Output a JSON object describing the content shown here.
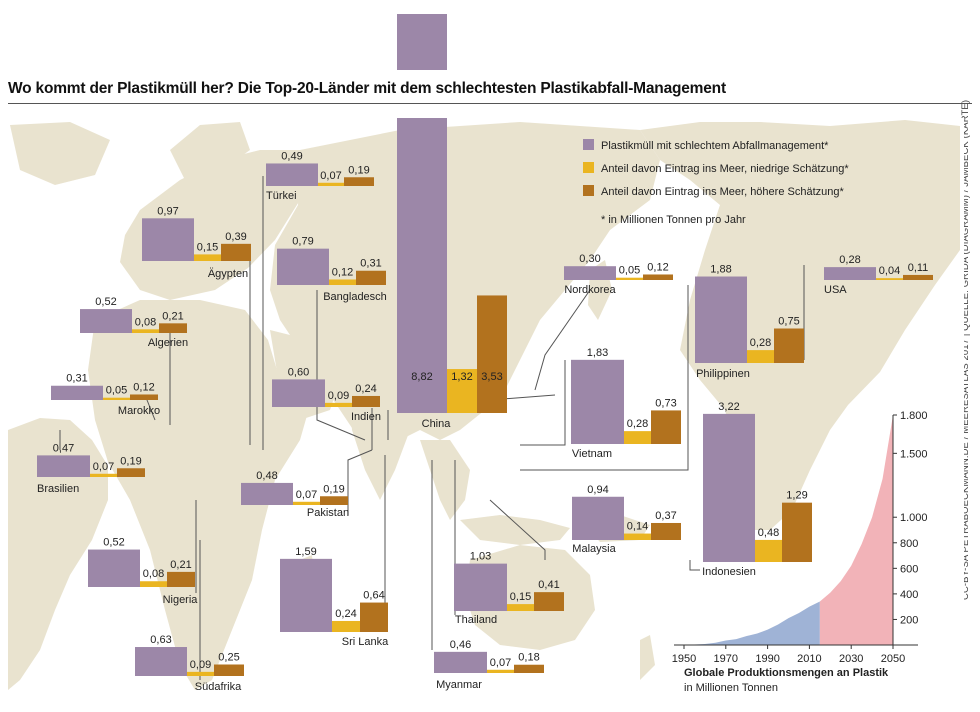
{
  "title": "Wo kommt der Plastikmüll her? Die Top-20-Länder mit dem schlechtesten Plastikabfall-Management",
  "credit": "CC-BY-SA PETRABOECKMANN.DE / MEERESATLAS 2017 | QUELLE: GRIDA (DIAGRAMM) / JAMBECK (KARTE)",
  "colors": {
    "waste": "#9c87a8",
    "low": "#eab521",
    "high": "#b2721e",
    "map": "#e9e3cf",
    "sea": "#ffffff",
    "land_line": "#ffffff",
    "line_area_past": "#9fb3d6",
    "line_area_future": "#f2b3b8"
  },
  "legend": {
    "items": [
      {
        "label": "Plastikmüll mit schlechtem Abfallmanagement*",
        "color": "#9c87a8"
      },
      {
        "label": "Anteil davon Eintrag ins Meer, niedrige Schätzung*",
        "color": "#eab521"
      },
      {
        "label": "Anteil davon Eintrag ins Meer, höhere Schätzung*",
        "color": "#b2721e"
      }
    ],
    "note": "* in Millionen Tonnen pro Jahr"
  },
  "chart_data": [
    {
      "type": "bar",
      "title": "Wo kommt der Plastikmüll her? Die Top-20-Länder mit dem schlechtesten Plastikabfall-Management",
      "unit": "Millionen Tonnen pro Jahr",
      "series": [
        {
          "name": "Plastikmüll mit schlechtem Abfallmanagement*"
        },
        {
          "name": "Anteil davon Eintrag ins Meer, niedrige Schätzung*"
        },
        {
          "name": "Anteil davon Eintrag ins Meer, höhere Schätzung*"
        }
      ],
      "countries": [
        {
          "name": "China",
          "values": [
            8.82,
            1.32,
            3.53
          ],
          "labels": [
            "8,82",
            "1,32",
            "3,53"
          ]
        },
        {
          "name": "Türkei",
          "values": [
            0.49,
            0.07,
            0.19
          ],
          "labels": [
            "0,49",
            "0,07",
            "0,19"
          ]
        },
        {
          "name": "Ägypten",
          "values": [
            0.97,
            0.15,
            0.39
          ],
          "labels": [
            "0,97",
            "0,15",
            "0,39"
          ]
        },
        {
          "name": "Bangladesch",
          "values": [
            0.79,
            0.12,
            0.31
          ],
          "labels": [
            "0,79",
            "0,12",
            "0,31"
          ]
        },
        {
          "name": "Algerien",
          "values": [
            0.52,
            0.08,
            0.21
          ],
          "labels": [
            "0,52",
            "0,08",
            "0,21"
          ]
        },
        {
          "name": "Marokko",
          "values": [
            0.31,
            0.05,
            0.12
          ],
          "labels": [
            "0,31",
            "0,05",
            "0,12"
          ]
        },
        {
          "name": "Indien",
          "values": [
            0.6,
            0.09,
            0.24
          ],
          "labels": [
            "0,60",
            "0,09",
            "0,24"
          ]
        },
        {
          "name": "Brasilien",
          "values": [
            0.47,
            0.07,
            0.19
          ],
          "labels": [
            "0,47",
            "0,07",
            "0,19"
          ]
        },
        {
          "name": "Pakistan",
          "values": [
            0.48,
            0.07,
            0.19
          ],
          "labels": [
            "0,48",
            "0,07",
            "0,19"
          ]
        },
        {
          "name": "Nigeria",
          "values": [
            0.52,
            0.08,
            0.21
          ],
          "labels": [
            "0,52",
            "0,08",
            "0,21"
          ]
        },
        {
          "name": "Sri Lanka",
          "values": [
            1.59,
            0.24,
            0.64
          ],
          "labels": [
            "1,59",
            "0,24",
            "0,64"
          ]
        },
        {
          "name": "Südafrika",
          "values": [
            0.63,
            0.09,
            0.25
          ],
          "labels": [
            "0,63",
            "0,09",
            "0,25"
          ]
        },
        {
          "name": "Myanmar",
          "values": [
            0.46,
            0.07,
            0.18
          ],
          "labels": [
            "0,46",
            "0,07",
            "0,18"
          ]
        },
        {
          "name": "Thailand",
          "values": [
            1.03,
            0.15,
            0.41
          ],
          "labels": [
            "1,03",
            "0,15",
            "0,41"
          ]
        },
        {
          "name": "Malaysia",
          "values": [
            0.94,
            0.14,
            0.37
          ],
          "labels": [
            "0,94",
            "0,14",
            "0,37"
          ]
        },
        {
          "name": "Vietnam",
          "values": [
            1.83,
            0.28,
            0.73
          ],
          "labels": [
            "1,83",
            "0,28",
            "0,73"
          ]
        },
        {
          "name": "Indonesien",
          "values": [
            3.22,
            0.48,
            1.29
          ],
          "labels": [
            "3,22",
            "0,48",
            "1,29"
          ]
        },
        {
          "name": "Philippinen",
          "values": [
            1.88,
            0.28,
            0.75
          ],
          "labels": [
            "1,88",
            "0,28",
            "0,75"
          ]
        },
        {
          "name": "Nordkorea",
          "values": [
            0.3,
            0.05,
            0.12
          ],
          "labels": [
            "0,30",
            "0,05",
            "0,12"
          ]
        },
        {
          "name": "USA",
          "values": [
            0.28,
            0.04,
            0.11
          ],
          "labels": [
            "0,28",
            "0,04",
            "0,11"
          ]
        }
      ]
    },
    {
      "type": "area",
      "title": "Globale Produktionsmengen an Plastik",
      "subtitle": "in Millionen Tonnen",
      "x_ticks": [
        "1950",
        "1970",
        "1990",
        "2010",
        "2030",
        "2050"
      ],
      "y_ticks": [
        "200",
        "400",
        "600",
        "800",
        "1.000",
        "1.500",
        "1.800"
      ],
      "xlim": [
        1950,
        2050
      ],
      "series": [
        {
          "x": [
            1950,
            1955,
            1960,
            1965,
            1970,
            1975,
            1980,
            1985,
            1990,
            1995,
            2000,
            2005,
            2010,
            2015
          ],
          "y": [
            2,
            4,
            8,
            18,
            35,
            46,
            70,
            90,
            120,
            160,
            210,
            250,
            300,
            340
          ]
        },
        {
          "x": [
            2015,
            2020,
            2025,
            2030,
            2035,
            2040,
            2045,
            2050
          ],
          "y": [
            340,
            410,
            500,
            620,
            790,
            1000,
            1300,
            1800
          ]
        }
      ]
    }
  ]
}
